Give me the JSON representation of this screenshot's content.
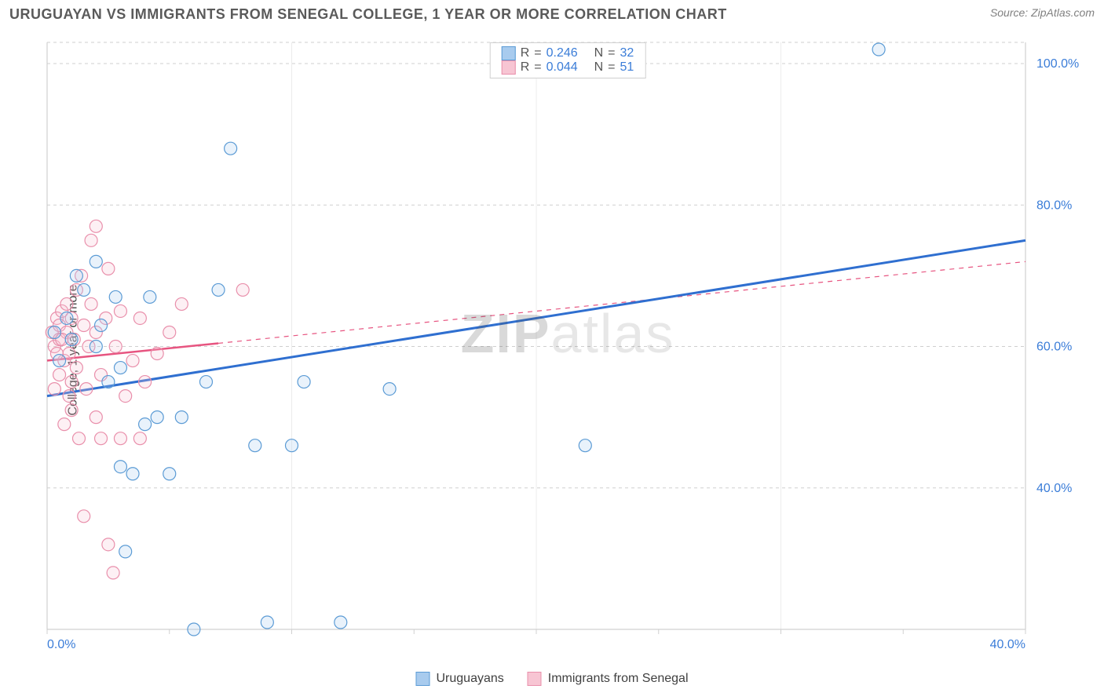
{
  "header": {
    "title": "URUGUAYAN VS IMMIGRANTS FROM SENEGAL COLLEGE, 1 YEAR OR MORE CORRELATION CHART",
    "source_prefix": "Source: ",
    "source_name": "ZipAtlas.com"
  },
  "watermark": {
    "bold": "ZIP",
    "rest": "atlas"
  },
  "ylabel": "College, 1 year or more",
  "chart": {
    "type": "scatter",
    "xlim": [
      0,
      40
    ],
    "ylim": [
      20,
      103
    ],
    "xtick_values": [
      0,
      40
    ],
    "xtick_labels": [
      "0.0%",
      "40.0%"
    ],
    "ytick_values": [
      40,
      60,
      80,
      100
    ],
    "ytick_labels": [
      "40.0%",
      "60.0%",
      "80.0%",
      "100.0%"
    ],
    "grid_color": "#cfcfcf",
    "axis_color": "#d0d0d0",
    "background_color": "#ffffff",
    "marker_radius": 8,
    "marker_stroke_width": 1.2,
    "marker_fill_opacity": 0.25,
    "series": {
      "uruguayans": {
        "label": "Uruguayans",
        "R": "0.246",
        "N": "32",
        "color_stroke": "#5b9bd5",
        "color_fill": "#a8cbee",
        "line_color": "#2f6fd0",
        "line_width": 3,
        "reg_start": [
          0,
          53
        ],
        "reg_end": [
          40,
          75
        ],
        "points": [
          [
            0.3,
            62
          ],
          [
            0.5,
            58
          ],
          [
            0.8,
            64
          ],
          [
            1.0,
            61
          ],
          [
            1.2,
            70
          ],
          [
            1.5,
            68
          ],
          [
            2.0,
            72
          ],
          [
            2.2,
            63
          ],
          [
            2.5,
            55
          ],
          [
            2.8,
            67
          ],
          [
            3.0,
            43
          ],
          [
            3.2,
            31
          ],
          [
            3.5,
            42
          ],
          [
            4.0,
            49
          ],
          [
            4.2,
            67
          ],
          [
            4.5,
            50
          ],
          [
            5.0,
            42
          ],
          [
            5.5,
            50
          ],
          [
            6.0,
            20
          ],
          [
            6.5,
            55
          ],
          [
            7.0,
            68
          ],
          [
            7.5,
            88
          ],
          [
            8.5,
            46
          ],
          [
            9.0,
            21
          ],
          [
            10.0,
            46
          ],
          [
            10.5,
            55
          ],
          [
            12.0,
            21
          ],
          [
            14.0,
            54
          ],
          [
            22.0,
            46
          ],
          [
            34.0,
            102
          ],
          [
            2.0,
            60
          ],
          [
            3.0,
            57
          ]
        ]
      },
      "senegal": {
        "label": "Immigrants from Senegal",
        "R": "0.044",
        "N": "51",
        "color_stroke": "#e98fab",
        "color_fill": "#f7c5d3",
        "line_color": "#e75480",
        "line_width": 2.5,
        "line_solid_end_x": 7,
        "reg_start": [
          0,
          58
        ],
        "reg_end": [
          40,
          72
        ],
        "points": [
          [
            0.2,
            62
          ],
          [
            0.3,
            60
          ],
          [
            0.4,
            64
          ],
          [
            0.5,
            61
          ],
          [
            0.5,
            63
          ],
          [
            0.6,
            65
          ],
          [
            0.7,
            58
          ],
          [
            0.8,
            66
          ],
          [
            0.8,
            62
          ],
          [
            0.9,
            59
          ],
          [
            1.0,
            64
          ],
          [
            1.0,
            55
          ],
          [
            1.1,
            61
          ],
          [
            1.2,
            68
          ],
          [
            1.3,
            47
          ],
          [
            1.4,
            70
          ],
          [
            1.5,
            63
          ],
          [
            1.5,
            36
          ],
          [
            1.6,
            54
          ],
          [
            1.7,
            60
          ],
          [
            1.8,
            66
          ],
          [
            1.8,
            75
          ],
          [
            2.0,
            50
          ],
          [
            2.0,
            62
          ],
          [
            2.0,
            77
          ],
          [
            2.2,
            56
          ],
          [
            2.2,
            47
          ],
          [
            2.4,
            64
          ],
          [
            2.5,
            32
          ],
          [
            2.5,
            71
          ],
          [
            2.7,
            28
          ],
          [
            2.8,
            60
          ],
          [
            3.0,
            47
          ],
          [
            3.0,
            65
          ],
          [
            3.2,
            53
          ],
          [
            3.5,
            58
          ],
          [
            3.8,
            47
          ],
          [
            3.8,
            64
          ],
          [
            4.0,
            55
          ],
          [
            4.5,
            59
          ],
          [
            5.0,
            62
          ],
          [
            5.5,
            66
          ],
          [
            1.0,
            51
          ],
          [
            1.2,
            57
          ],
          [
            0.9,
            53
          ],
          [
            0.7,
            49
          ],
          [
            0.5,
            56
          ],
          [
            0.4,
            59
          ],
          [
            0.3,
            54
          ],
          [
            0.6,
            61
          ],
          [
            8.0,
            68
          ]
        ]
      }
    }
  },
  "legend": {
    "r_label": "R",
    "n_label": "N",
    "eq": "="
  },
  "bottom_legend": {
    "item1": "Uruguayans",
    "item2": "Immigrants from Senegal"
  }
}
